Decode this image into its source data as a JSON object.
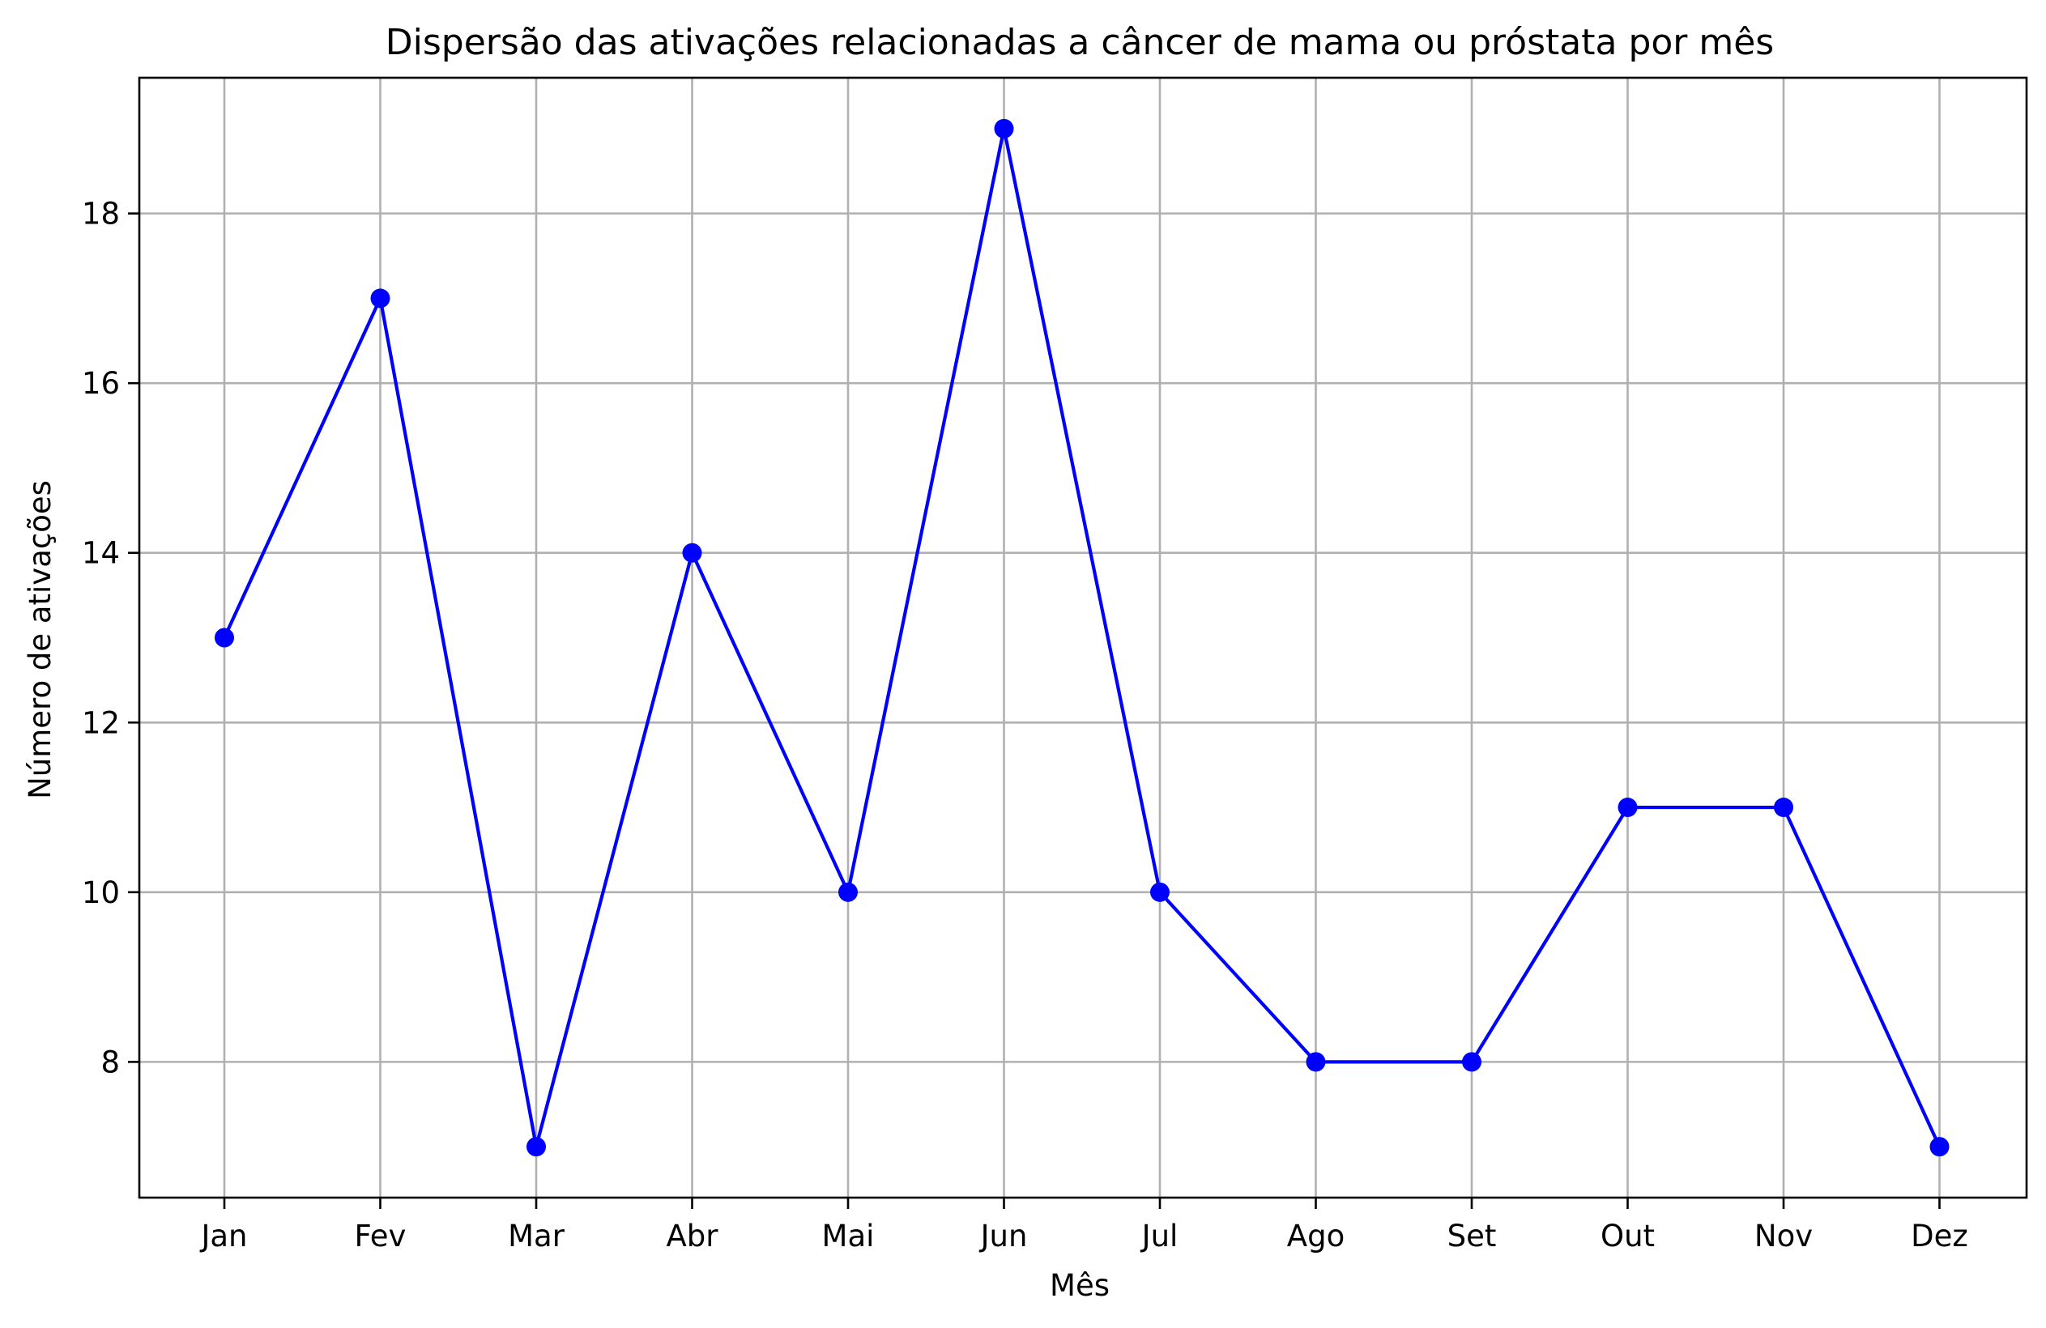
{
  "chart_data": {
    "type": "line",
    "title": "Dispersão das ativações relacionadas a câncer de mama ou próstata por mês",
    "xlabel": "Mês",
    "ylabel": "Número de ativações",
    "categories": [
      "Jan",
      "Fev",
      "Mar",
      "Abr",
      "Mai",
      "Jun",
      "Jul",
      "Ago",
      "Set",
      "Out",
      "Nov",
      "Dez"
    ],
    "series": [
      {
        "values": [
          13,
          17,
          7,
          14,
          10,
          19,
          10,
          8,
          8,
          11,
          11,
          7
        ],
        "color": "#0000ff",
        "marker": "circle"
      }
    ],
    "ylim": [
      6.4,
      19.6
    ],
    "yticks": [
      8,
      10,
      12,
      14,
      16,
      18
    ],
    "grid": true,
    "legend": "none"
  }
}
